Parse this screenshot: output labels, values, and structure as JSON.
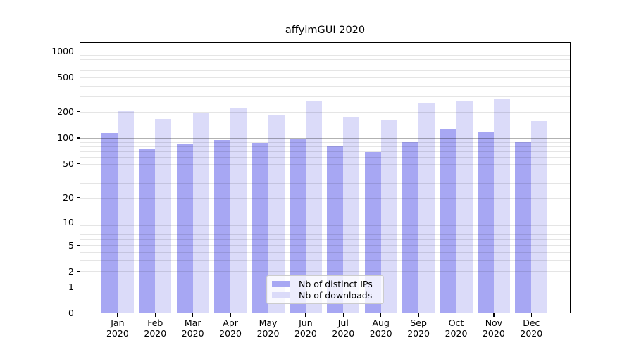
{
  "title": "affylmGUI 2020",
  "colors": {
    "bar_ips": "#a7a7f3",
    "bar_downloads": "#dbdbf9",
    "grid_major": "rgba(0,0,0,0.30)",
    "grid_minor": "rgba(0,0,0,0.10)",
    "axis": "#000000",
    "text": "#000000",
    "legend_border": "#cccccc",
    "legend_bg": "rgba(255,255,255,0.8)"
  },
  "legend": {
    "items": [
      {
        "label": "Nb of distinct IPs",
        "color": "#a7a7f3"
      },
      {
        "label": "Nb of downloads",
        "color": "#dbdbf9"
      }
    ]
  },
  "chart_data": {
    "type": "bar",
    "title": "affylmGUI 2020",
    "categories": [
      "Jan",
      "Feb",
      "Mar",
      "Apr",
      "May",
      "Jun",
      "Jul",
      "Aug",
      "Sep",
      "Oct",
      "Nov",
      "Dec"
    ],
    "category_year": "2020",
    "series": [
      {
        "name": "Nb of distinct IPs",
        "color": "#a7a7f3",
        "values": [
          114,
          76,
          85,
          95,
          87,
          96,
          81,
          68,
          90,
          128,
          119,
          91
        ]
      },
      {
        "name": "Nb of downloads",
        "color": "#dbdbf9",
        "values": [
          202,
          165,
          192,
          218,
          181,
          262,
          176,
          162,
          255,
          265,
          278,
          155
        ]
      }
    ],
    "xlabel": "",
    "ylabel": "",
    "y_scale": "log1p",
    "y_ticks": [
      0,
      1,
      2,
      5,
      10,
      20,
      50,
      100,
      200,
      500,
      1000
    ],
    "y_minor_tick_multiples": [
      2,
      3,
      4,
      5,
      6,
      7,
      8,
      9
    ],
    "ylim": [
      0,
      1200
    ],
    "grid": "horizontal",
    "legend_position": "inside lower center"
  }
}
